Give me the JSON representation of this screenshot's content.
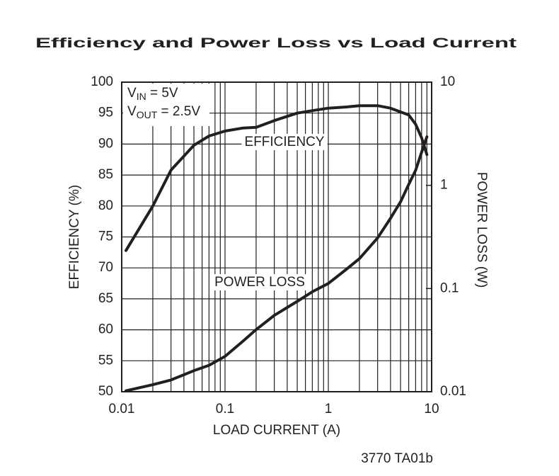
{
  "chart_data": {
    "type": "line",
    "title": "Efficiency and Power Loss vs Load Current",
    "x_label": "LOAD CURRENT (A)",
    "y_label": "EFFICIENCY (%)",
    "y2_label": "POWER LOSS (W)",
    "footnote": "3770 TA01b",
    "annotations": [
      {
        "text": "V",
        "sub": "IN",
        "rest": " = 5V"
      },
      {
        "text": "V",
        "sub": "OUT",
        "rest": " = 2.5V"
      }
    ],
    "x": [
      0.011,
      0.02,
      0.03,
      0.05,
      0.07,
      0.1,
      0.15,
      0.2,
      0.3,
      0.5,
      0.7,
      1,
      1.5,
      2,
      3,
      4,
      5,
      6,
      7,
      8,
      9
    ],
    "xscale": "log",
    "xlim": [
      0.01,
      10
    ],
    "xticks": [
      0.01,
      0.1,
      1,
      10
    ],
    "ylim": [
      50,
      100
    ],
    "yticks": [
      50,
      55,
      60,
      65,
      70,
      75,
      80,
      85,
      90,
      95,
      100
    ],
    "y2scale": "log",
    "y2lim": [
      0.01,
      10
    ],
    "y2ticks": [
      0.01,
      0.1,
      1,
      10
    ],
    "grid": true,
    "minor_grid": true,
    "series": [
      {
        "name": "EFFICIENCY",
        "color": "#231f20",
        "values": [
          72.8,
          80,
          85.8,
          89.8,
          91.3,
          92.1,
          92.6,
          92.7,
          93.8,
          95,
          95.4,
          95.8,
          96,
          96.2,
          96.2,
          95.8,
          95.2,
          94.7,
          93.2,
          91,
          88.3
        ]
      },
      {
        "name": "POWER LOSS",
        "color": "#231f20",
        "axis": "y2",
        "values": [
          0.0102,
          0.0117,
          0.013,
          0.016,
          0.018,
          0.022,
          0.031,
          0.04,
          0.055,
          0.075,
          0.093,
          0.112,
          0.154,
          0.195,
          0.31,
          0.48,
          0.69,
          1.02,
          1.4,
          2.1,
          2.95
        ]
      }
    ]
  }
}
